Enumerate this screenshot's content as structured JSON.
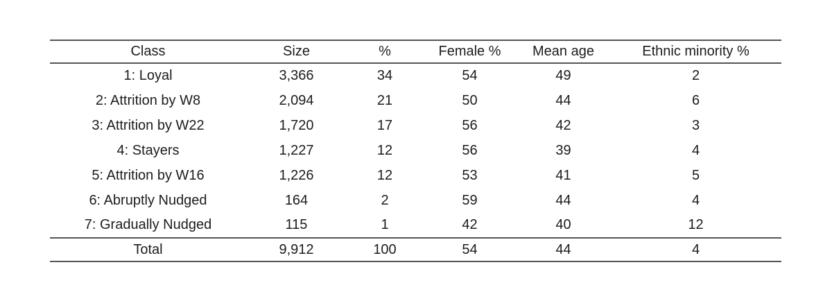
{
  "table": {
    "columns": [
      "Class",
      "Size",
      "%",
      "Female %",
      "Mean age",
      "Ethnic minority %"
    ],
    "rows": [
      [
        "1: Loyal",
        "3,366",
        "34",
        "54",
        "49",
        "2"
      ],
      [
        "2: Attrition by W8",
        "2,094",
        "21",
        "50",
        "44",
        "6"
      ],
      [
        "3: Attrition by W22",
        "1,720",
        "17",
        "56",
        "42",
        "3"
      ],
      [
        "4: Stayers",
        "1,227",
        "12",
        "56",
        "39",
        "4"
      ],
      [
        "5: Attrition by W16",
        "1,226",
        "12",
        "53",
        "41",
        "5"
      ],
      [
        "6: Abruptly Nudged",
        "164",
        "2",
        "59",
        "44",
        "4"
      ],
      [
        "7: Gradually Nudged",
        "115",
        "1",
        "42",
        "40",
        "12"
      ]
    ],
    "total_row": [
      "Total",
      "9,912",
      "100",
      "54",
      "44",
      "4"
    ],
    "text_color": "#1c1c1c",
    "rule_color": "#555555",
    "background_color": "#ffffff"
  }
}
